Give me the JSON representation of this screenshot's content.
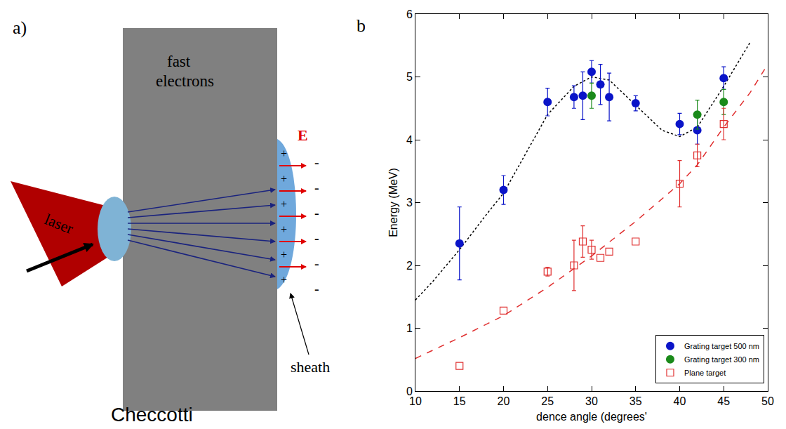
{
  "chart_data": {
    "type": "scatter",
    "panel_label": "b)",
    "x_label": "dence angle (degrees'",
    "y_label": "Energy (MeV)",
    "xlim": [
      10,
      50
    ],
    "xticks": [
      10,
      15,
      20,
      25,
      30,
      35,
      40,
      45,
      50
    ],
    "ylim": [
      0,
      6
    ],
    "yticks": [
      0,
      1,
      2,
      3,
      4,
      5,
      6
    ],
    "legend": "lower right",
    "series": [
      {
        "type": "line",
        "color": "#000000",
        "line_style": "dotted",
        "x": [
          10,
          12,
          15,
          18,
          20,
          22,
          25,
          28,
          30,
          32,
          35,
          38,
          40,
          42,
          45,
          48
        ],
        "values": [
          1.45,
          1.75,
          2.25,
          2.8,
          3.15,
          3.65,
          4.4,
          4.85,
          5.0,
          4.95,
          4.55,
          4.15,
          4.05,
          4.2,
          4.85,
          5.55
        ]
      },
      {
        "type": "line",
        "color": "#e03030",
        "line_style": "dashed",
        "x": [
          10,
          15,
          20,
          25,
          30,
          35,
          40,
          42,
          45,
          48,
          50
        ],
        "values": [
          0.52,
          0.85,
          1.2,
          1.65,
          2.15,
          2.7,
          3.3,
          3.6,
          4.2,
          4.75,
          5.2
        ]
      },
      {
        "name": "Grating target 500 nm",
        "type": "scatter",
        "color": "#0a14c8",
        "marker": "circle",
        "x": [
          15,
          20,
          25,
          28,
          29,
          30,
          31,
          32,
          35,
          40,
          42,
          45
        ],
        "values": [
          2.35,
          3.2,
          4.6,
          4.68,
          4.7,
          5.08,
          4.88,
          4.68,
          4.58,
          4.25,
          4.15,
          4.98
        ],
        "errors": [
          0.58,
          0.23,
          0.22,
          0.18,
          0.38,
          0.18,
          0.32,
          0.38,
          0.12,
          0.17,
          0.22,
          0.18
        ]
      },
      {
        "name": "Grating target 300 nm",
        "type": "scatter",
        "color": "#1a8a1a",
        "marker": "circle",
        "x": [
          30,
          42,
          45
        ],
        "values": [
          4.7,
          4.4,
          4.6
        ],
        "errors": [
          0.2,
          0.23,
          0.2
        ]
      },
      {
        "name": "Plane target",
        "type": "scatter",
        "color": "#e03030",
        "marker": "square-open",
        "x": [
          15,
          20,
          25,
          28,
          29,
          30,
          31,
          32,
          35,
          40,
          42,
          45
        ],
        "values": [
          0.4,
          1.28,
          1.9,
          2.0,
          2.38,
          2.25,
          2.12,
          2.22,
          2.38,
          3.3,
          3.75,
          4.25
        ],
        "errors": [
          null,
          null,
          0.07,
          0.4,
          0.25,
          0.15,
          null,
          null,
          null,
          0.37,
          0.18,
          0.25
        ]
      }
    ]
  },
  "diagram": {
    "panel_label": "a)",
    "laser": "laser",
    "fast_electrons": "fast electrons",
    "field": "E",
    "sheath": "sheath",
    "plus": "+",
    "minus": "-",
    "caption": "Checcotti"
  }
}
